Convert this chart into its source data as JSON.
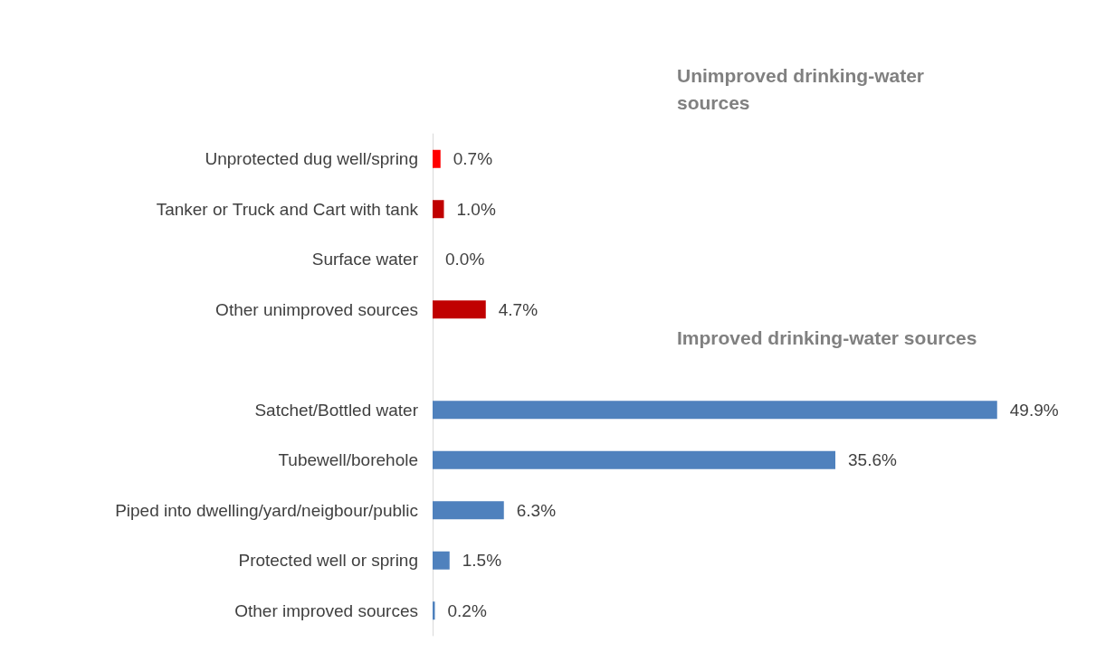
{
  "chart_data": {
    "type": "bar",
    "orientation": "horizontal",
    "categories": [
      "Unprotected dug well/spring",
      "Tanker or Truck and Cart with tank",
      "Surface water",
      "Other unimproved sources",
      null,
      "Satchet/Bottled water",
      "Tubewell/borehole",
      "Piped into dwelling/yard/neigbour/public",
      "Protected well or spring",
      "Other improved sources"
    ],
    "values": [
      0.7,
      1.0,
      0.0,
      4.7,
      null,
      49.9,
      35.6,
      6.3,
      1.5,
      0.2
    ],
    "colors": [
      "#ff0000",
      "#c00000",
      "#c00000",
      "#c00000",
      "#4f81bd",
      "#4f81bd",
      "#4f81bd",
      "#4f81bd",
      "#4f81bd",
      "#4f81bd"
    ],
    "value_labels": [
      "0.7%",
      "1.0%",
      "0.0%",
      "4.7%",
      null,
      "49.9%",
      "35.6%",
      "6.3%",
      "1.5%",
      "0.2%"
    ],
    "annotations": [
      "Unimproved drinking-water sources",
      "Improved drinking-water sources"
    ]
  }
}
